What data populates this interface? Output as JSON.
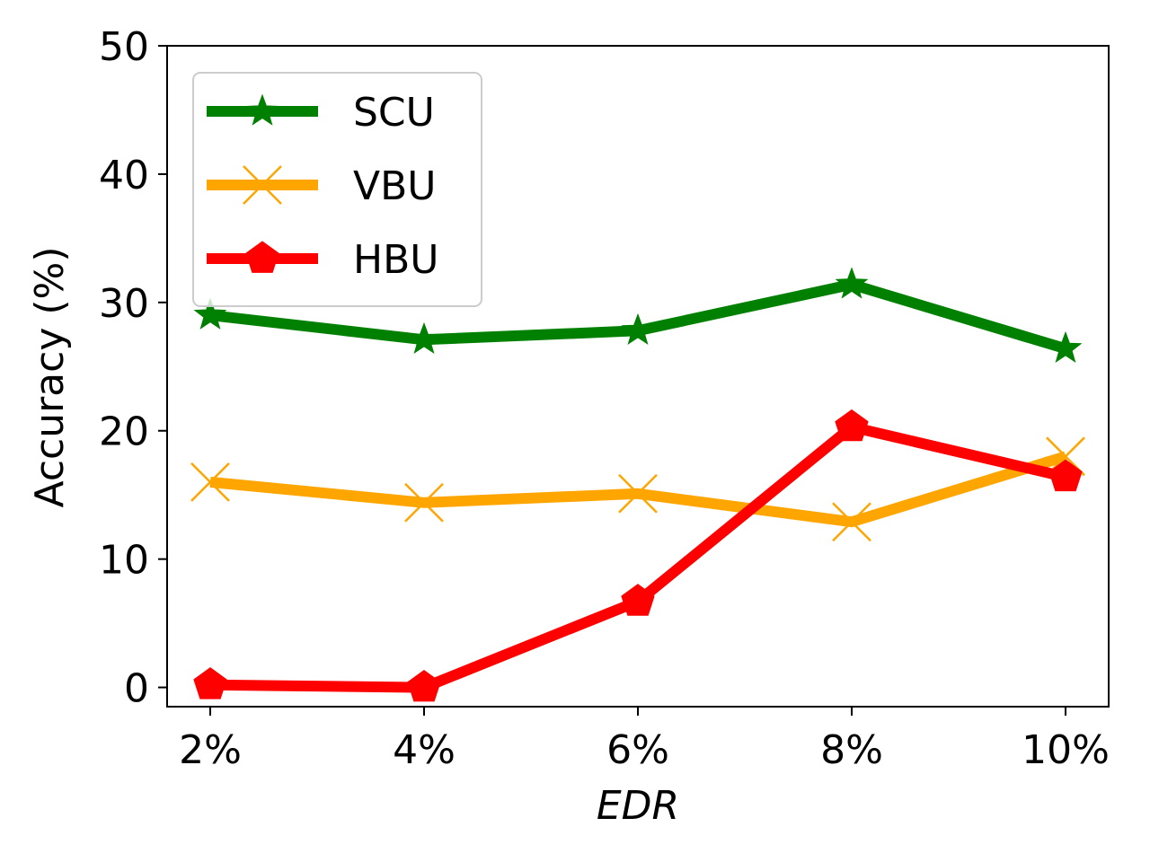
{
  "chart_data": {
    "type": "line",
    "categories": [
      "2%",
      "4%",
      "6%",
      "8%",
      "10%"
    ],
    "xlabel": "EDR",
    "ylabel": "Accuracy (%)",
    "ylim": [
      -1.5,
      50
    ],
    "yticks": [
      0,
      10,
      20,
      30,
      40,
      50
    ],
    "grid": false,
    "legend_position": "top-left",
    "series": [
      {
        "name": "SCU",
        "color": "#008000",
        "marker": "star",
        "values": [
          29.0,
          27.1,
          27.8,
          31.4,
          26.4
        ]
      },
      {
        "name": "VBU",
        "color": "#FFA500",
        "marker": "x",
        "values": [
          16.0,
          14.4,
          15.1,
          12.9,
          18.0
        ]
      },
      {
        "name": "HBU",
        "color": "#FF0000",
        "marker": "pentagon",
        "values": [
          0.2,
          0.0,
          6.7,
          20.3,
          16.4
        ]
      }
    ]
  }
}
